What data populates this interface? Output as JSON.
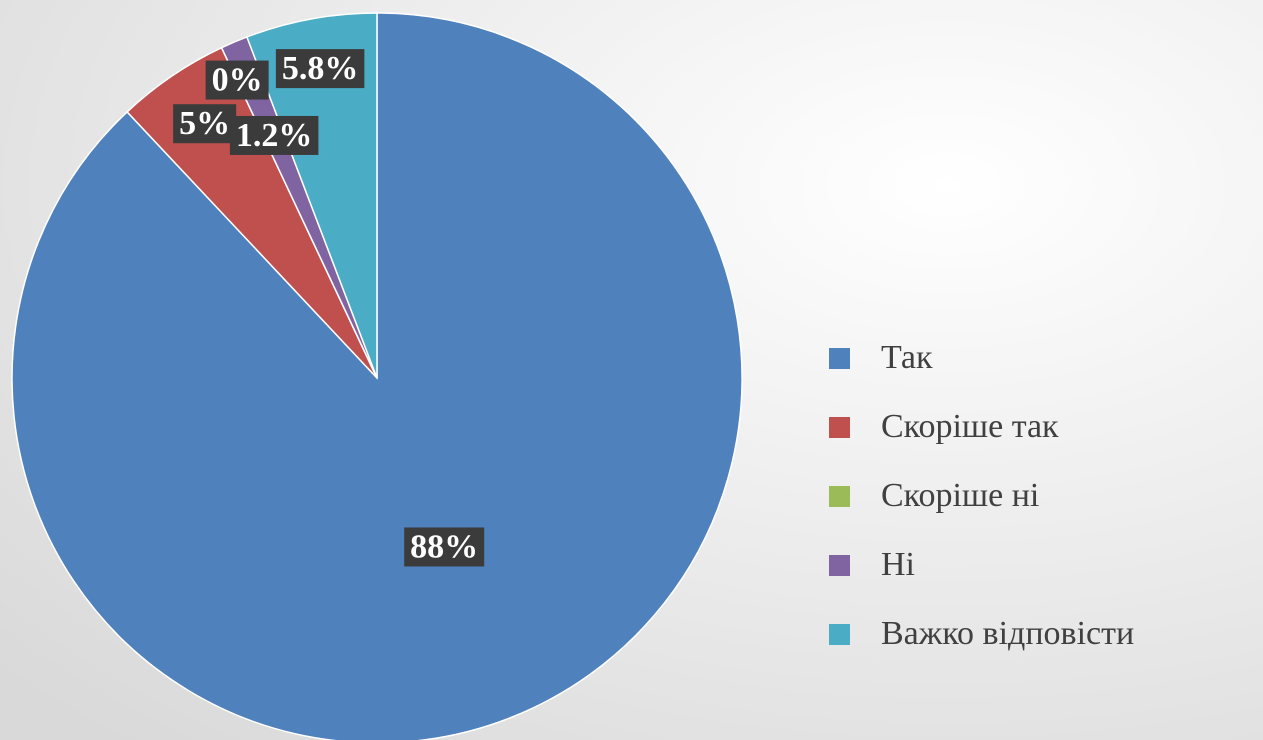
{
  "chart_data": {
    "type": "pie",
    "categories": [
      "Так",
      "Скоріше так",
      "Скоріше ні",
      "Ні",
      "Важко відповісти"
    ],
    "values": [
      88,
      5,
      0,
      1.2,
      5.8
    ],
    "value_labels": [
      "88%",
      "5%",
      "0%",
      "1.2%",
      "5.8%"
    ],
    "colors": [
      "#4f81bd",
      "#c0504d",
      "#9bbb59",
      "#8064a2",
      "#4bacc6"
    ],
    "legend": "right"
  }
}
